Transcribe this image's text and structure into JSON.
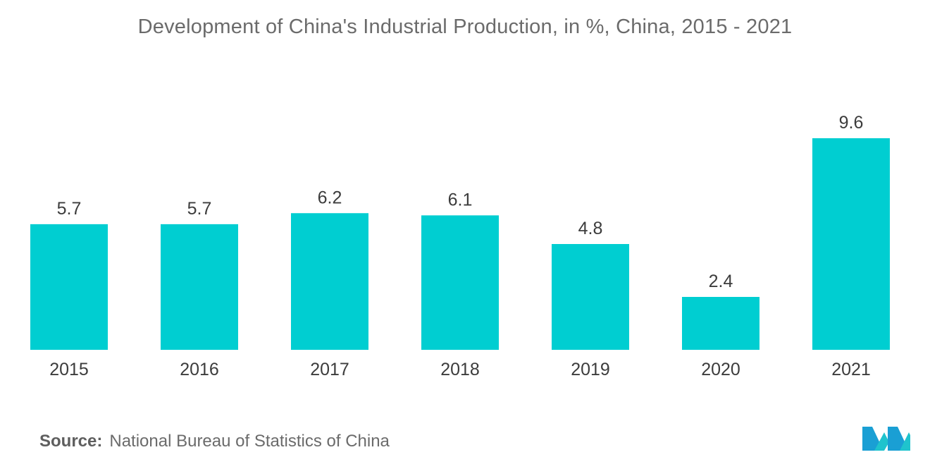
{
  "chart_data": {
    "type": "bar",
    "title": "Development of China's Industrial Production, in %, China, 2015 - 2021",
    "categories": [
      "2015",
      "2016",
      "2017",
      "2018",
      "2019",
      "2020",
      "2021"
    ],
    "values": [
      5.7,
      5.7,
      6.2,
      6.1,
      4.8,
      2.4,
      9.6
    ],
    "value_labels": [
      "5.7",
      "5.7",
      "6.2",
      "6.1",
      "4.8",
      "2.4",
      "9.6"
    ],
    "xlabel": "",
    "ylabel": "",
    "ylim": [
      0,
      9.6
    ],
    "grid": false,
    "legend": "none",
    "bar_color": "#00ced1"
  },
  "source": {
    "label": "Source:",
    "text": "National Bureau of Statistics of China"
  },
  "logo": {
    "icon": "mordor-intelligence-logo-icon",
    "colors": [
      "#1a9fd4",
      "#1fc3cd",
      "#0b5c8e"
    ]
  }
}
